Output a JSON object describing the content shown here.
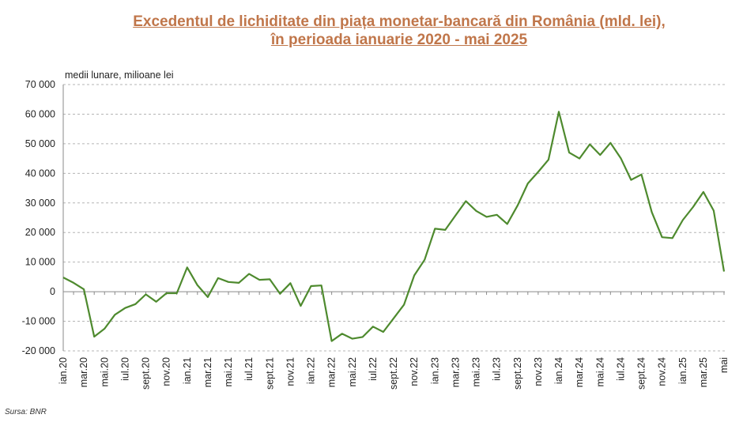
{
  "title_line1": "Excedentul de lichiditate din piața monetar-bancară din România (mld. lei),",
  "title_line2": "în perioada ianuarie 2020 - mai 2025",
  "source": "Sursa: BNR",
  "chart_data": {
    "type": "line",
    "ylabel": "medii lunare, milioane lei",
    "xlabel": "",
    "ylim": [
      -20000,
      70000
    ],
    "yticks": [
      70000,
      60000,
      50000,
      40000,
      30000,
      20000,
      10000,
      0,
      -10000,
      -20000
    ],
    "ytick_labels": [
      "70 000",
      "60 000",
      "50 000",
      "40 000",
      "30 000",
      "20 000",
      "10 000",
      "0",
      "-10 000",
      "-20 000"
    ],
    "grid": true,
    "line_color": "#4e8a2e",
    "x_tick_labels": [
      "ian.20",
      "mar.20",
      "mai.20",
      "iul.20",
      "sept.20",
      "nov.20",
      "ian.21",
      "mar.21",
      "mai.21",
      "iul.21",
      "sept.21",
      "nov.21",
      "ian.22",
      "mar.22",
      "mai.22",
      "iul.22",
      "sept.22",
      "nov.22",
      "ian.23",
      "mar.23",
      "mai.23",
      "iul.23",
      "sept.23",
      "nov.23",
      "ian.24",
      "mar.24",
      "mai.24",
      "iul.24",
      "sept.24",
      "nov.24",
      "ian.25",
      "mar.25",
      "mai"
    ],
    "x": [
      "ian.20",
      "feb.20",
      "mar.20",
      "apr.20",
      "mai.20",
      "iun.20",
      "iul.20",
      "aug.20",
      "sept.20",
      "oct.20",
      "nov.20",
      "dec.20",
      "ian.21",
      "feb.21",
      "mar.21",
      "apr.21",
      "mai.21",
      "iun.21",
      "iul.21",
      "aug.21",
      "sept.21",
      "oct.21",
      "nov.21",
      "dec.21",
      "ian.22",
      "feb.22",
      "mar.22",
      "apr.22",
      "mai.22",
      "iun.22",
      "iul.22",
      "aug.22",
      "sept.22",
      "oct.22",
      "nov.22",
      "dec.22",
      "ian.23",
      "feb.23",
      "mar.23",
      "apr.23",
      "mai.23",
      "iun.23",
      "iul.23",
      "aug.23",
      "sept.23",
      "oct.23",
      "nov.23",
      "dec.23",
      "ian.24",
      "feb.24",
      "mar.24",
      "apr.24",
      "mai.24",
      "iun.24",
      "iul.24",
      "aug.24",
      "sept.24",
      "oct.24",
      "nov.24",
      "dec.24",
      "ian.25",
      "feb.25",
      "mar.25",
      "apr.25",
      "mai.25"
    ],
    "series": [
      {
        "values": [
          4800,
          3000,
          800,
          -15200,
          -12500,
          -7800,
          -5500,
          -4200,
          -900,
          -3400,
          -500,
          -500,
          8200,
          2200,
          -1800,
          4600,
          3300,
          3000,
          6000,
          4000,
          4200,
          -700,
          2900,
          -4800,
          1900,
          2100,
          -16700,
          -14200,
          -15900,
          -15300,
          -11800,
          -13600,
          -9000,
          -4400,
          5500,
          10800,
          21300,
          20900,
          25800,
          30600,
          27300,
          25300,
          26000,
          22900,
          29100,
          36600,
          40500,
          44600,
          60800,
          47000,
          45000,
          49800,
          46200,
          50300,
          45100,
          37800,
          39600,
          26900,
          18400,
          18100,
          24200,
          28600,
          33700,
          27400,
          6800
        ]
      }
    ]
  }
}
